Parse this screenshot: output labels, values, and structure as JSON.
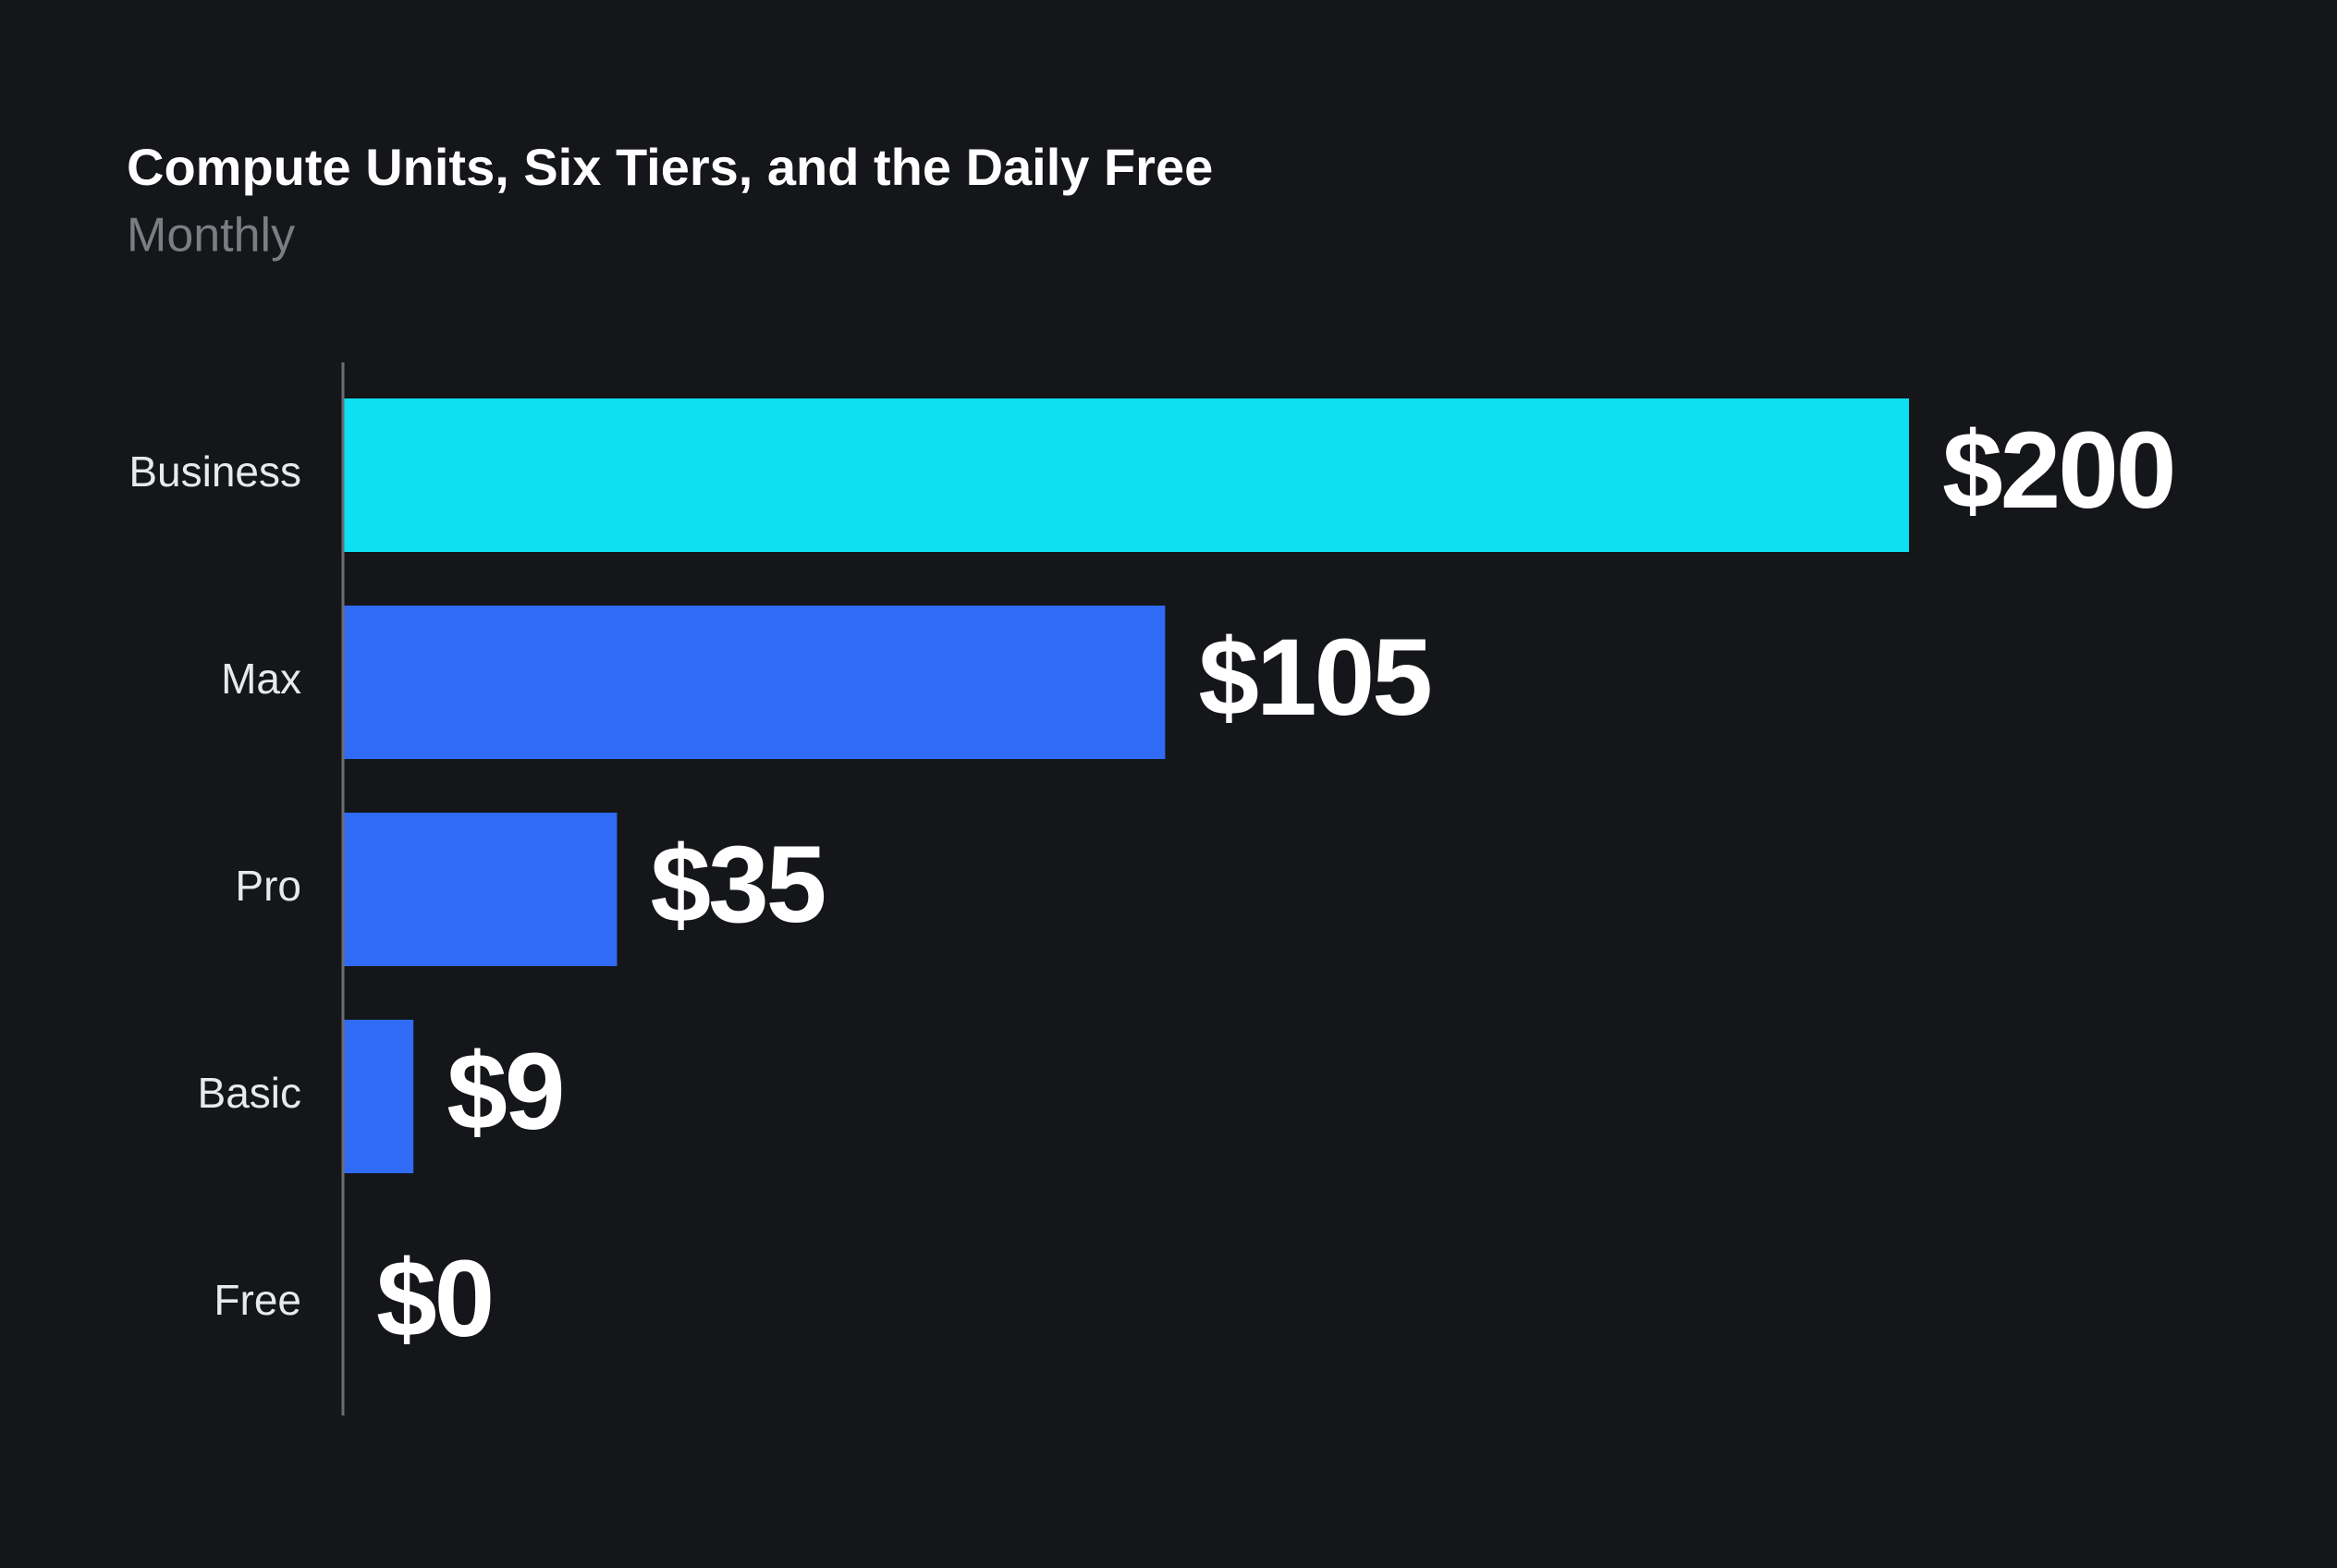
{
  "chart_data": {
    "type": "bar",
    "orientation": "horizontal",
    "title": "Compute Units, Six Tiers, and the Daily Free",
    "subtitle": "Monthly",
    "categories": [
      "Business",
      "Max",
      "Pro",
      "Basic",
      "Free"
    ],
    "values": [
      200,
      105,
      35,
      9,
      0
    ],
    "value_labels": [
      "$200",
      "$105",
      "$35",
      "$9",
      "$0"
    ],
    "colors": [
      "#0ee0f2",
      "#2f6bf5",
      "#2f6bf5",
      "#2f6bf5",
      "#2f6bf5"
    ],
    "xlim": [
      0,
      200
    ],
    "grid": false
  }
}
